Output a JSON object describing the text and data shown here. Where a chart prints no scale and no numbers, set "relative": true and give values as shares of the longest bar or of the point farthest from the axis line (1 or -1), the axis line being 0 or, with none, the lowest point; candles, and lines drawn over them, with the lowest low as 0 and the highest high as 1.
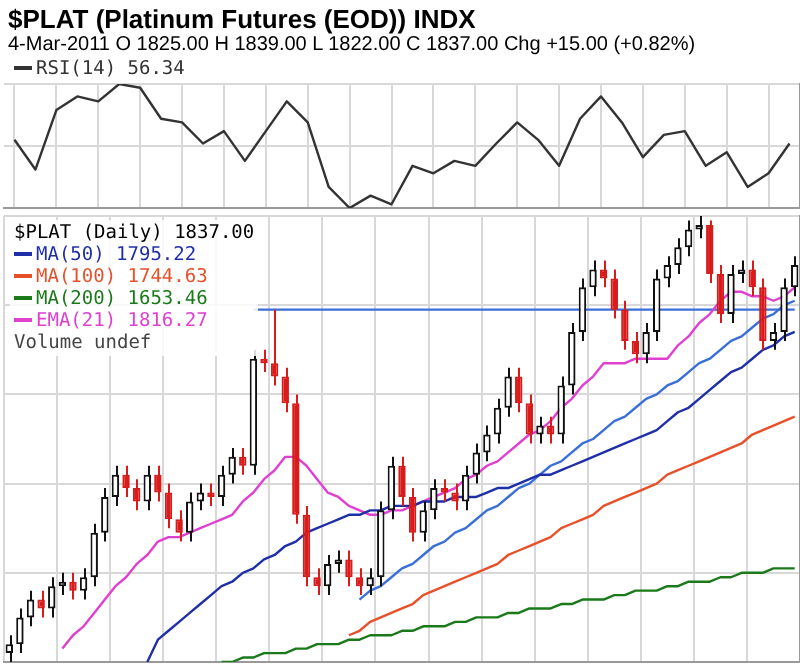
{
  "chart_data": [
    {
      "type": "line",
      "title": "$PLAT (Platinum Futures (EOD)) INDX",
      "subtitle": "4-Mar-2011  O 1825.00  H 1839.00  L 1822.00  C 1837.00  Chg +15.00 (+0.82%)",
      "relative": true,
      "grid": true,
      "legend": "top left",
      "categories": [
        null,
        null,
        null,
        null,
        null,
        null,
        null,
        null,
        null,
        null,
        null,
        null,
        null,
        null,
        null,
        null,
        null,
        null,
        null,
        null,
        null,
        null,
        null,
        null,
        null,
        null,
        null,
        null,
        null,
        null,
        null,
        null,
        null,
        null,
        null,
        null,
        null,
        null
      ],
      "series": [
        {
          "name": "RSI(14) 56.34",
          "color": "#333333",
          "values": [
            0.55,
            0.31,
            0.79,
            0.9,
            0.86,
            1.0,
            0.97,
            0.72,
            0.69,
            0.52,
            0.62,
            0.38,
            0.62,
            0.86,
            0.69,
            0.17,
            0.0,
            0.1,
            0.03,
            0.34,
            0.28,
            0.38,
            0.34,
            0.52,
            0.69,
            0.55,
            0.34,
            0.72,
            0.9,
            0.69,
            0.41,
            0.59,
            0.62,
            0.34,
            0.45,
            0.17,
            0.28,
            0.52
          ]
        }
      ]
    },
    {
      "type": "candlestick",
      "relative": true,
      "grid": true,
      "legend": "top left",
      "legend_title": "$PLAT (Daily) 1837.00",
      "annotations": [
        "Volume undef"
      ],
      "categories": [
        null,
        null,
        null,
        null,
        null,
        null,
        null,
        null,
        null,
        null,
        null,
        null,
        null,
        null,
        null,
        null,
        null,
        null,
        null,
        null,
        null,
        null,
        null,
        null,
        null,
        null,
        null,
        null,
        null,
        null,
        null,
        null,
        null,
        null,
        null,
        null,
        null,
        null,
        null,
        null,
        null,
        null,
        null,
        null,
        null,
        null,
        null,
        null,
        null,
        null,
        null,
        null,
        null,
        null,
        null,
        null,
        null,
        null,
        null,
        null,
        null,
        null,
        null,
        null,
        null,
        null,
        null,
        null,
        null,
        null,
        null,
        null,
        null,
        null,
        null
      ],
      "ohlc": [
        [
          0.02,
          0.06,
          0.0,
          0.04
        ],
        [
          0.04,
          0.12,
          0.02,
          0.1
        ],
        [
          0.1,
          0.16,
          0.08,
          0.14
        ],
        [
          0.14,
          0.16,
          0.1,
          0.12
        ],
        [
          0.12,
          0.19,
          0.1,
          0.17
        ],
        [
          0.17,
          0.2,
          0.15,
          0.18
        ],
        [
          0.18,
          0.2,
          0.14,
          0.16
        ],
        [
          0.16,
          0.21,
          0.14,
          0.19
        ],
        [
          0.19,
          0.31,
          0.17,
          0.29
        ],
        [
          0.29,
          0.39,
          0.27,
          0.37
        ],
        [
          0.37,
          0.44,
          0.35,
          0.42
        ],
        [
          0.42,
          0.44,
          0.37,
          0.39
        ],
        [
          0.39,
          0.41,
          0.34,
          0.36
        ],
        [
          0.36,
          0.44,
          0.34,
          0.42
        ],
        [
          0.42,
          0.44,
          0.36,
          0.38
        ],
        [
          0.38,
          0.4,
          0.3,
          0.32
        ],
        [
          0.32,
          0.34,
          0.27,
          0.29
        ],
        [
          0.29,
          0.38,
          0.27,
          0.36
        ],
        [
          0.36,
          0.4,
          0.34,
          0.38
        ],
        [
          0.38,
          0.4,
          0.35,
          0.37
        ],
        [
          0.37,
          0.44,
          0.35,
          0.42
        ],
        [
          0.42,
          0.48,
          0.4,
          0.46
        ],
        [
          0.46,
          0.48,
          0.42,
          0.44
        ],
        [
          0.44,
          0.7,
          0.42,
          0.68
        ],
        [
          0.68,
          0.7,
          0.65,
          0.67
        ],
        [
          0.67,
          0.79,
          0.62,
          0.64
        ],
        [
          0.64,
          0.66,
          0.56,
          0.58
        ],
        [
          0.58,
          0.6,
          0.31,
          0.33
        ],
        [
          0.33,
          0.35,
          0.17,
          0.19
        ],
        [
          0.19,
          0.21,
          0.15,
          0.17
        ],
        [
          0.17,
          0.24,
          0.15,
          0.22
        ],
        [
          0.22,
          0.25,
          0.2,
          0.23
        ],
        [
          0.23,
          0.25,
          0.17,
          0.19
        ],
        [
          0.19,
          0.21,
          0.15,
          0.17
        ],
        [
          0.17,
          0.21,
          0.15,
          0.19
        ],
        [
          0.19,
          0.36,
          0.17,
          0.34
        ],
        [
          0.34,
          0.46,
          0.32,
          0.44
        ],
        [
          0.44,
          0.46,
          0.35,
          0.37
        ],
        [
          0.37,
          0.39,
          0.27,
          0.29
        ],
        [
          0.29,
          0.36,
          0.27,
          0.34
        ],
        [
          0.34,
          0.41,
          0.32,
          0.39
        ],
        [
          0.39,
          0.41,
          0.36,
          0.38
        ],
        [
          0.38,
          0.4,
          0.34,
          0.36
        ],
        [
          0.36,
          0.44,
          0.34,
          0.42
        ],
        [
          0.42,
          0.49,
          0.4,
          0.47
        ],
        [
          0.47,
          0.53,
          0.45,
          0.51
        ],
        [
          0.51,
          0.59,
          0.49,
          0.57
        ],
        [
          0.57,
          0.66,
          0.55,
          0.64
        ],
        [
          0.64,
          0.66,
          0.56,
          0.58
        ],
        [
          0.58,
          0.6,
          0.49,
          0.51
        ],
        [
          0.51,
          0.55,
          0.49,
          0.53
        ],
        [
          0.53,
          0.55,
          0.49,
          0.51
        ],
        [
          0.51,
          0.64,
          0.49,
          0.62
        ],
        [
          0.62,
          0.76,
          0.6,
          0.74
        ],
        [
          0.74,
          0.86,
          0.72,
          0.84
        ],
        [
          0.84,
          0.9,
          0.82,
          0.88
        ],
        [
          0.88,
          0.9,
          0.84,
          0.86
        ],
        [
          0.86,
          0.88,
          0.77,
          0.79
        ],
        [
          0.79,
          0.81,
          0.7,
          0.72
        ],
        [
          0.72,
          0.74,
          0.67,
          0.69
        ],
        [
          0.69,
          0.76,
          0.67,
          0.74
        ],
        [
          0.74,
          0.88,
          0.72,
          0.86
        ],
        [
          0.86,
          0.91,
          0.84,
          0.89
        ],
        [
          0.89,
          0.95,
          0.87,
          0.93
        ],
        [
          0.93,
          0.99,
          0.91,
          0.97
        ],
        [
          0.97,
          1.0,
          0.95,
          0.98
        ],
        [
          0.98,
          0.99,
          0.85,
          0.87
        ],
        [
          0.87,
          0.89,
          0.76,
          0.78
        ],
        [
          0.78,
          0.89,
          0.76,
          0.87
        ],
        [
          0.87,
          0.9,
          0.85,
          0.88
        ],
        [
          0.88,
          0.9,
          0.82,
          0.84
        ],
        [
          0.84,
          0.86,
          0.7,
          0.72
        ],
        [
          0.72,
          0.76,
          0.7,
          0.74
        ],
        [
          0.74,
          0.86,
          0.72,
          0.84
        ],
        [
          0.84,
          0.91,
          0.82,
          0.89
        ]
      ],
      "series": [
        {
          "name": "MA(50) 1795.22",
          "type": "line",
          "color": "#1f2fa8",
          "values": [
            null,
            null,
            null,
            null,
            null,
            null,
            null,
            null,
            null,
            null,
            null,
            null,
            null,
            0.0,
            0.05,
            0.07,
            0.09,
            0.11,
            0.13,
            0.15,
            0.17,
            0.18,
            0.2,
            0.21,
            0.23,
            0.24,
            0.26,
            0.27,
            0.29,
            0.3,
            0.31,
            0.32,
            0.33,
            0.33,
            0.34,
            0.34,
            0.35,
            0.35,
            0.35,
            0.36,
            0.36,
            0.36,
            0.37,
            0.37,
            0.37,
            0.38,
            0.39,
            0.39,
            0.4,
            0.41,
            0.42,
            0.42,
            0.43,
            0.44,
            0.45,
            0.46,
            0.47,
            0.48,
            0.49,
            0.5,
            0.51,
            0.52,
            0.54,
            0.56,
            0.57,
            0.59,
            0.61,
            0.63,
            0.65,
            0.66,
            0.68,
            0.7,
            0.71,
            0.73,
            0.74
          ]
        },
        {
          "name": "MA(100) 1744.63",
          "type": "line",
          "color": "#e8502a",
          "values": [
            null,
            null,
            null,
            null,
            null,
            null,
            null,
            null,
            null,
            null,
            null,
            null,
            null,
            null,
            null,
            null,
            null,
            null,
            null,
            null,
            null,
            null,
            null,
            null,
            null,
            null,
            null,
            null,
            null,
            null,
            null,
            null,
            0.06,
            0.07,
            0.09,
            0.1,
            0.11,
            0.12,
            0.13,
            0.15,
            0.16,
            0.17,
            0.18,
            0.19,
            0.2,
            0.21,
            0.22,
            0.24,
            0.25,
            0.26,
            0.27,
            0.28,
            0.3,
            0.31,
            0.32,
            0.33,
            0.35,
            0.36,
            0.37,
            0.38,
            0.39,
            0.4,
            0.42,
            0.43,
            0.44,
            0.45,
            0.46,
            0.47,
            0.48,
            0.49,
            0.51,
            0.52,
            0.53,
            0.54,
            0.55
          ]
        },
        {
          "name": "MA(200) 1653.46",
          "type": "line",
          "color": "#1a7a1a",
          "values": [
            null,
            null,
            null,
            null,
            null,
            null,
            null,
            null,
            null,
            null,
            null,
            null,
            null,
            null,
            null,
            null,
            null,
            null,
            null,
            null,
            0.0,
            0.0,
            0.01,
            0.01,
            0.02,
            0.02,
            0.02,
            0.03,
            0.03,
            0.04,
            0.04,
            0.04,
            0.05,
            0.05,
            0.06,
            0.06,
            0.06,
            0.07,
            0.07,
            0.08,
            0.08,
            0.08,
            0.09,
            0.09,
            0.1,
            0.1,
            0.1,
            0.11,
            0.11,
            0.12,
            0.12,
            0.12,
            0.13,
            0.13,
            0.14,
            0.14,
            0.14,
            0.15,
            0.15,
            0.16,
            0.16,
            0.16,
            0.17,
            0.17,
            0.18,
            0.18,
            0.18,
            0.19,
            0.19,
            0.2,
            0.2,
            0.2,
            0.21,
            0.21,
            0.21
          ]
        },
        {
          "name": "EMA(21) 1816.27",
          "type": "line",
          "color": "#e040d0",
          "values": [
            null,
            null,
            null,
            null,
            null,
            0.03,
            0.06,
            0.08,
            0.11,
            0.14,
            0.17,
            0.19,
            0.22,
            0.24,
            0.27,
            0.28,
            0.28,
            0.29,
            0.3,
            0.31,
            0.32,
            0.33,
            0.36,
            0.38,
            0.41,
            0.43,
            0.46,
            0.46,
            0.44,
            0.41,
            0.38,
            0.37,
            0.35,
            0.34,
            0.33,
            0.33,
            0.34,
            0.34,
            0.35,
            0.36,
            0.37,
            0.38,
            0.39,
            0.41,
            0.42,
            0.44,
            0.45,
            0.47,
            0.49,
            0.51,
            0.52,
            0.54,
            0.57,
            0.59,
            0.62,
            0.64,
            0.67,
            0.67,
            0.67,
            0.68,
            0.68,
            0.68,
            0.68,
            0.71,
            0.73,
            0.76,
            0.78,
            0.81,
            0.83,
            0.83,
            0.82,
            0.82,
            0.81,
            0.82,
            0.84
          ]
        },
        {
          "type": "line",
          "color": "#3a6fd8",
          "values": [
            null,
            null,
            null,
            null,
            null,
            null,
            null,
            null,
            null,
            null,
            null,
            null,
            null,
            null,
            null,
            null,
            null,
            null,
            null,
            null,
            null,
            null,
            null,
            0.79,
            0.79,
            0.79,
            0.79,
            0.79,
            0.79,
            0.79,
            0.79,
            0.79,
            0.79,
            0.79,
            0.79,
            0.79,
            0.79,
            0.79,
            0.79,
            0.79,
            0.79,
            0.79,
            0.79,
            0.79,
            0.79,
            0.79,
            0.79,
            0.79,
            0.79,
            0.79,
            0.79,
            0.79,
            0.79,
            0.79,
            0.79,
            0.79,
            0.79,
            0.79,
            0.79,
            0.79,
            0.79,
            0.79,
            0.79,
            0.79,
            0.79,
            0.79,
            0.79,
            0.79,
            0.79,
            0.79,
            0.79,
            0.79,
            0.79,
            0.79,
            0.79
          ]
        },
        {
          "type": "line",
          "color": "#3a6fd8",
          "values": [
            null,
            null,
            null,
            null,
            null,
            null,
            null,
            null,
            null,
            null,
            null,
            null,
            null,
            null,
            null,
            null,
            null,
            null,
            null,
            null,
            null,
            null,
            null,
            null,
            null,
            null,
            null,
            null,
            null,
            null,
            null,
            null,
            null,
            0.14,
            0.16,
            0.17,
            0.19,
            0.21,
            0.22,
            0.24,
            0.26,
            0.27,
            0.29,
            0.3,
            0.32,
            0.34,
            0.35,
            0.37,
            0.39,
            0.4,
            0.42,
            0.44,
            0.45,
            0.47,
            0.49,
            0.5,
            0.52,
            0.54,
            0.55,
            0.57,
            0.59,
            0.6,
            0.62,
            0.63,
            0.65,
            0.67,
            0.68,
            0.7,
            0.72,
            0.73,
            0.75,
            0.77,
            0.78,
            0.8,
            0.81
          ]
        }
      ]
    }
  ]
}
